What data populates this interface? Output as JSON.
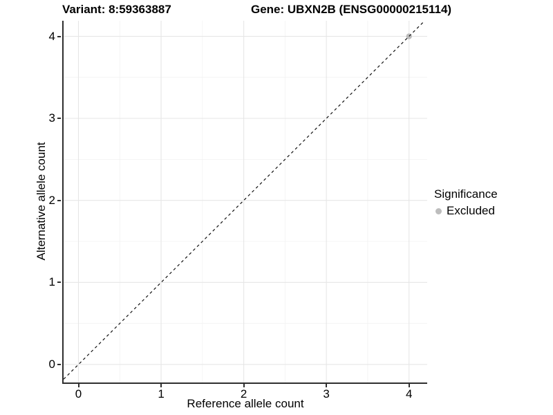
{
  "titles": {
    "variant": "Variant: 8:59363887",
    "gene": "Gene: UBXN2B (ENSG00000215114)"
  },
  "legend": {
    "title": "Significance",
    "entries": [
      {
        "label": "Excluded",
        "color": "#bdbdbd"
      }
    ]
  },
  "chart_data": {
    "type": "scatter",
    "title_left": "Variant: 8:59363887",
    "title_right": "Gene: UBXN2B (ENSG00000215114)",
    "xlabel": "Reference allele count",
    "ylabel": "Alternative allele count",
    "xlim": [
      -0.18,
      4.22
    ],
    "ylim": [
      -0.22,
      4.19
    ],
    "x_ticks": [
      0,
      1,
      2,
      3,
      4
    ],
    "y_ticks": [
      0,
      1,
      2,
      3,
      4
    ],
    "grid": {
      "major_color": "#e6e6e6",
      "minor_color": "#f2f2f2",
      "minor": true
    },
    "axis_line_color": "#2e2e2e",
    "reference_line": {
      "slope": 1,
      "intercept": 0,
      "style": "dashed",
      "color": "#111111"
    },
    "series": [
      {
        "name": "Excluded",
        "color": "#bdbdbd",
        "point_radius": 4.2,
        "points": [
          {
            "x": 4,
            "y": 4
          }
        ]
      }
    ],
    "legend_title": "Significance",
    "legend_position": "right"
  }
}
